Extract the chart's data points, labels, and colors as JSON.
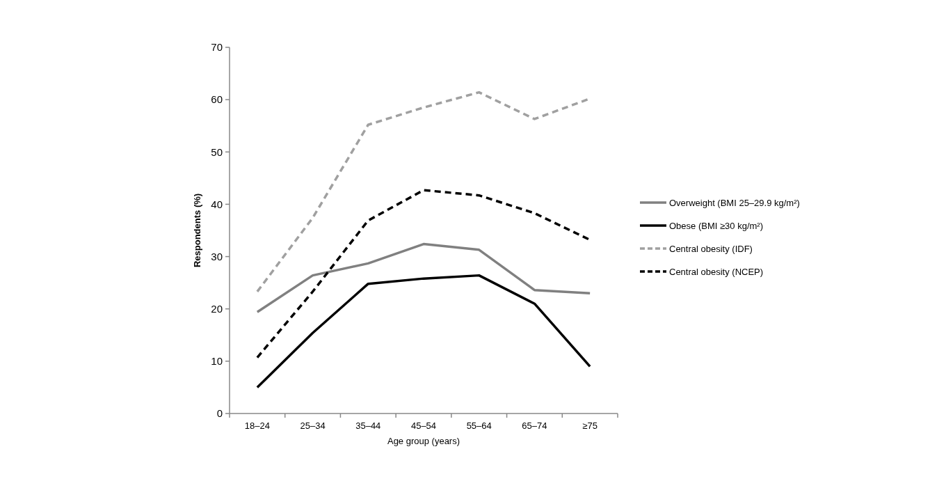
{
  "chart_data": {
    "type": "line",
    "xlabel": "Age group (years)",
    "ylabel": "Respondents (%)",
    "categories": [
      "18–24",
      "25–34",
      "35–44",
      "45–54",
      "55–64",
      "65–74",
      "≥75"
    ],
    "ylim": [
      0,
      70
    ],
    "yticks": [
      0,
      10,
      20,
      30,
      40,
      50,
      60,
      70
    ],
    "grid": false,
    "legend": "right",
    "marker": "none",
    "series": [
      {
        "name": "Overweight (BMI 25–29.9 kg/m²)",
        "color": "#808080",
        "line_style": "solid",
        "values": [
          19.4,
          26.4,
          28.7,
          32.4,
          31.3,
          23.6,
          23.0
        ]
      },
      {
        "name": "Obese (BMI ≥30 kg/m²)",
        "color": "#000000",
        "line_style": "solid",
        "values": [
          5.0,
          15.4,
          24.8,
          25.8,
          26.4,
          21.0,
          9.0
        ]
      },
      {
        "name": "Central obesity (IDF)",
        "color": "#a0a0a0",
        "line_style": "dashed",
        "values": [
          23.3,
          37.4,
          55.2,
          58.5,
          61.4,
          56.3,
          60.2
        ]
      },
      {
        "name": "Central obesity (NCEP)",
        "color": "#000000",
        "line_style": "dashed",
        "values": [
          10.7,
          23.3,
          36.9,
          42.7,
          41.7,
          38.3,
          33.2
        ]
      }
    ]
  }
}
